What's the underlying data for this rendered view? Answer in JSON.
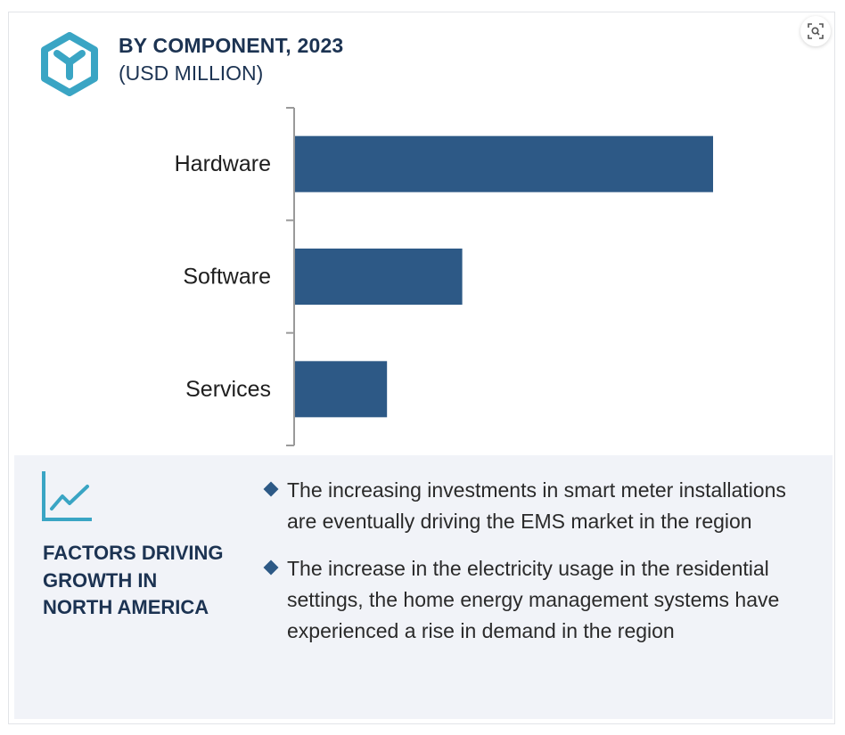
{
  "header": {
    "title": "BY COMPONENT, 2023",
    "subtitle": "(USD MILLION)",
    "icon": "cube-icon",
    "zoom_icon": "zoom-icon"
  },
  "colors": {
    "bar": "#2d5986",
    "accent": "#3aa5c4",
    "heading": "#1c3352",
    "panel_bg": "#f1f3f8"
  },
  "chart_data": {
    "type": "bar",
    "orientation": "horizontal",
    "categories": [
      "Hardware",
      "Software",
      "Services"
    ],
    "values": [
      100,
      40,
      22
    ],
    "xlim": [
      0,
      100
    ],
    "title": "BY COMPONENT, 2023",
    "unit": "(USD MILLION)",
    "grid": false,
    "legend": "none"
  },
  "factors": {
    "icon": "trend-chart-icon",
    "heading_lines": [
      "FACTORS DRIVING",
      "GROWTH IN",
      "NORTH AMERICA"
    ],
    "bullets": [
      "The increasing investments in smart meter installations are eventually driving the EMS market in the region",
      "The increase in the electricity usage in the residential settings, the home energy management systems have experienced a rise in demand in the region"
    ]
  }
}
